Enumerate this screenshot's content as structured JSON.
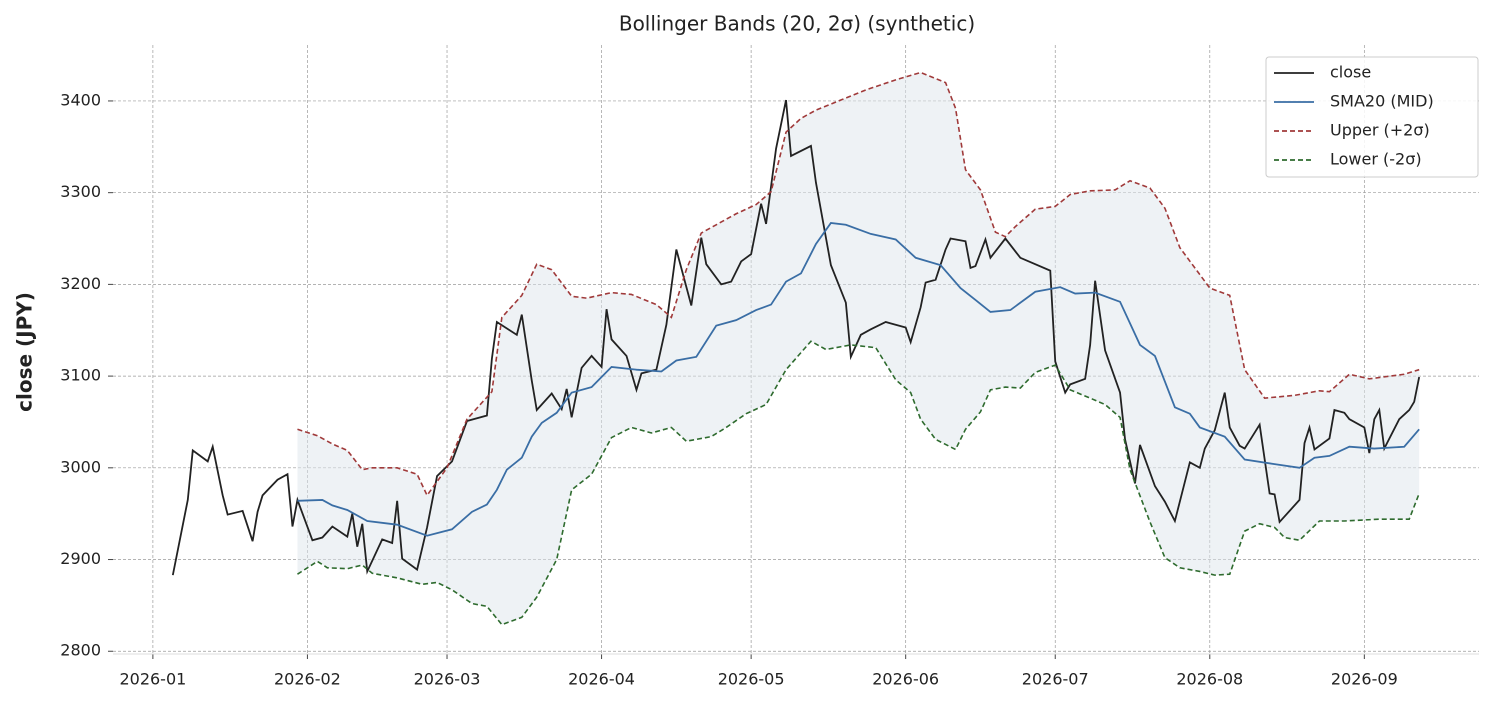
{
  "chart_data": {
    "type": "line",
    "title": "Bollinger Bands (20, 2σ) (synthetic)",
    "y_label": "close (JPY)",
    "xlim": [
      -8,
      266
    ],
    "ylim": [
      2797,
      3461
    ],
    "xticks": [
      {
        "value": 0,
        "label": "2026-01"
      },
      {
        "value": 31,
        "label": "2026-02"
      },
      {
        "value": 59,
        "label": "2026-03"
      },
      {
        "value": 90,
        "label": "2026-04"
      },
      {
        "value": 120,
        "label": "2026-05"
      },
      {
        "value": 151,
        "label": "2026-06"
      },
      {
        "value": 181,
        "label": "2026-07"
      },
      {
        "value": 212,
        "label": "2026-08"
      },
      {
        "value": 243,
        "label": "2026-09"
      }
    ],
    "yticks": [
      2800,
      2900,
      3000,
      3100,
      3200,
      3300,
      3400
    ],
    "grid": true,
    "legend": "upper right",
    "band_fill": "#dde5ec",
    "series": [
      {
        "name": "close",
        "color": "#222222",
        "linestyle": "solid",
        "x": [
          4,
          7,
          8,
          11,
          12,
          14,
          15,
          18,
          20,
          21,
          22,
          25,
          27,
          28,
          29,
          32,
          34,
          36,
          39,
          40,
          41,
          42,
          43,
          46,
          48,
          49,
          50,
          53,
          55,
          57,
          60,
          63,
          67,
          68,
          69,
          73,
          74,
          76,
          77,
          80,
          82,
          83,
          84,
          86,
          88,
          90,
          91,
          92,
          95,
          97,
          98,
          101,
          103,
          105,
          108,
          110,
          111,
          114,
          116,
          118,
          120,
          122,
          123,
          125,
          127,
          128,
          132,
          133,
          136,
          139,
          140,
          142,
          144,
          147,
          151,
          152,
          154,
          155,
          157,
          159,
          160,
          163,
          164,
          165,
          167,
          168,
          171,
          174,
          180,
          181,
          183,
          184,
          187,
          188,
          189,
          191,
          194,
          195,
          197,
          198,
          201,
          203,
          205,
          208,
          210,
          211,
          213,
          215,
          216,
          218,
          219,
          222,
          224,
          225,
          226,
          230,
          231,
          232,
          233,
          236,
          237,
          239,
          240,
          243,
          244,
          245,
          246,
          247,
          250,
          252,
          253,
          254
        ],
        "values": [
          2883,
          2965,
          3019,
          3007,
          3023,
          2970,
          2949,
          2953,
          2920,
          2952,
          2970,
          2987,
          2993,
          2936,
          2965,
          2921,
          2924,
          2936,
          2925,
          2950,
          2914,
          2939,
          2887,
          2922,
          2918,
          2964,
          2901,
          2889,
          2935,
          2991,
          3007,
          3051,
          3057,
          3119,
          3159,
          3145,
          3167,
          3095,
          3063,
          3081,
          3064,
          3086,
          3055,
          3109,
          3122,
          3110,
          3173,
          3140,
          3122,
          3085,
          3103,
          3107,
          3156,
          3238,
          3177,
          3251,
          3222,
          3200,
          3203,
          3225,
          3233,
          3288,
          3266,
          3348,
          3401,
          3340,
          3351,
          3311,
          3221,
          3180,
          3121,
          3145,
          3151,
          3159,
          3153,
          3137,
          3175,
          3202,
          3205,
          3238,
          3250,
          3247,
          3218,
          3220,
          3249,
          3229,
          3250,
          3229,
          3215,
          3116,
          3082,
          3091,
          3097,
          3134,
          3204,
          3128,
          3082,
          3031,
          2983,
          3025,
          2980,
          2963,
          2942,
          3006,
          3000,
          3021,
          3041,
          3082,
          3044,
          3024,
          3021,
          3047,
          2972,
          2971,
          2941,
          2965,
          3027,
          3044,
          3020,
          3032,
          3063,
          3060,
          3053,
          3044,
          3016,
          3053,
          3063,
          3021,
          3053,
          3063,
          3072,
          3099
        ]
      },
      {
        "name": "SMA20 (MID)",
        "color": "#3a6ea5",
        "linestyle": "solid",
        "x": [
          29,
          34,
          36,
          39,
          43,
          49,
          55,
          60,
          64,
          67,
          69,
          71,
          74,
          76,
          78,
          81,
          84,
          88,
          92,
          97,
          102,
          105,
          109,
          113,
          117,
          121,
          124,
          127,
          130,
          133,
          136,
          139,
          144,
          149,
          153,
          158,
          162,
          165,
          168,
          172,
          177,
          182,
          185,
          189,
          194,
          198,
          201,
          205,
          208,
          210,
          215,
          219,
          225,
          230,
          233,
          236,
          240,
          245,
          251,
          254
        ],
        "values": [
          2964,
          2965,
          2959,
          2954,
          2942,
          2938,
          2926,
          2933,
          2952,
          2960,
          2976,
          2998,
          3011,
          3034,
          3049,
          3060,
          3082,
          3088,
          3110,
          3107,
          3105,
          3117,
          3121,
          3155,
          3161,
          3172,
          3178,
          3203,
          3212,
          3244,
          3267,
          3265,
          3255,
          3249,
          3229,
          3221,
          3196,
          3183,
          3170,
          3172,
          3192,
          3197,
          3190,
          3191,
          3181,
          3134,
          3122,
          3066,
          3059,
          3044,
          3034,
          3009,
          3004,
          3000,
          3011,
          3013,
          3023,
          3021,
          3023,
          3042
        ]
      },
      {
        "name": "Upper (+2σ)",
        "color": "#a03a3a",
        "linestyle": "dashed",
        "x": [
          29,
          33,
          36,
          39,
          42,
          44,
          49,
          53,
          55,
          59,
          63,
          68,
          70,
          74,
          77,
          80,
          84,
          87,
          92,
          96,
          101,
          104,
          107,
          110,
          113,
          117,
          121,
          124,
          127,
          130,
          133,
          138,
          143,
          149,
          154,
          159,
          161,
          163,
          166,
          169,
          171,
          173,
          177,
          181,
          184,
          188,
          193,
          196,
          200,
          203,
          206,
          209,
          212,
          216,
          219,
          223,
          229,
          234,
          236,
          240,
          244,
          251,
          254
        ],
        "values": [
          3042,
          3035,
          3026,
          3019,
          2998,
          3000,
          3000,
          2993,
          2970,
          3000,
          3053,
          3083,
          3164,
          3188,
          3222,
          3216,
          3187,
          3185,
          3191,
          3189,
          3178,
          3164,
          3216,
          3256,
          3265,
          3277,
          3287,
          3301,
          3366,
          3381,
          3390,
          3401,
          3412,
          3423,
          3431,
          3420,
          3392,
          3325,
          3303,
          3257,
          3252,
          3263,
          3282,
          3285,
          3298,
          3302,
          3303,
          3313,
          3305,
          3283,
          3240,
          3218,
          3196,
          3188,
          3107,
          3076,
          3079,
          3084,
          3083,
          3102,
          3097,
          3102,
          3107
        ]
      },
      {
        "name": "Lower (-2σ)",
        "color": "#2e6b2e",
        "linestyle": "dashed",
        "x": [
          29,
          33,
          35,
          39,
          42,
          44,
          49,
          54,
          57,
          60,
          64,
          67,
          70,
          74,
          77,
          81,
          84,
          88,
          92,
          96,
          100,
          104,
          107,
          112,
          115,
          119,
          123,
          127,
          132,
          135,
          140,
          145,
          149,
          152,
          154,
          157,
          161,
          163,
          166,
          168,
          171,
          174,
          177,
          181,
          184,
          188,
          191,
          194,
          196,
          200,
          203,
          206,
          210,
          213,
          216,
          219,
          222,
          225,
          227,
          230,
          234,
          239,
          246,
          252,
          254
        ],
        "values": [
          2884,
          2898,
          2891,
          2890,
          2894,
          2885,
          2880,
          2873,
          2875,
          2867,
          2852,
          2849,
          2829,
          2837,
          2859,
          2900,
          2976,
          2993,
          3033,
          3044,
          3038,
          3044,
          3029,
          3034,
          3044,
          3059,
          3069,
          3107,
          3138,
          3129,
          3134,
          3131,
          3096,
          3082,
          3053,
          3031,
          3020,
          3042,
          3061,
          3085,
          3088,
          3087,
          3104,
          3112,
          3085,
          3076,
          3069,
          3055,
          2998,
          2941,
          2902,
          2891,
          2887,
          2883,
          2884,
          2931,
          2939,
          2935,
          2924,
          2921,
          2942,
          2942,
          2944,
          2944,
          2972
        ]
      }
    ]
  }
}
